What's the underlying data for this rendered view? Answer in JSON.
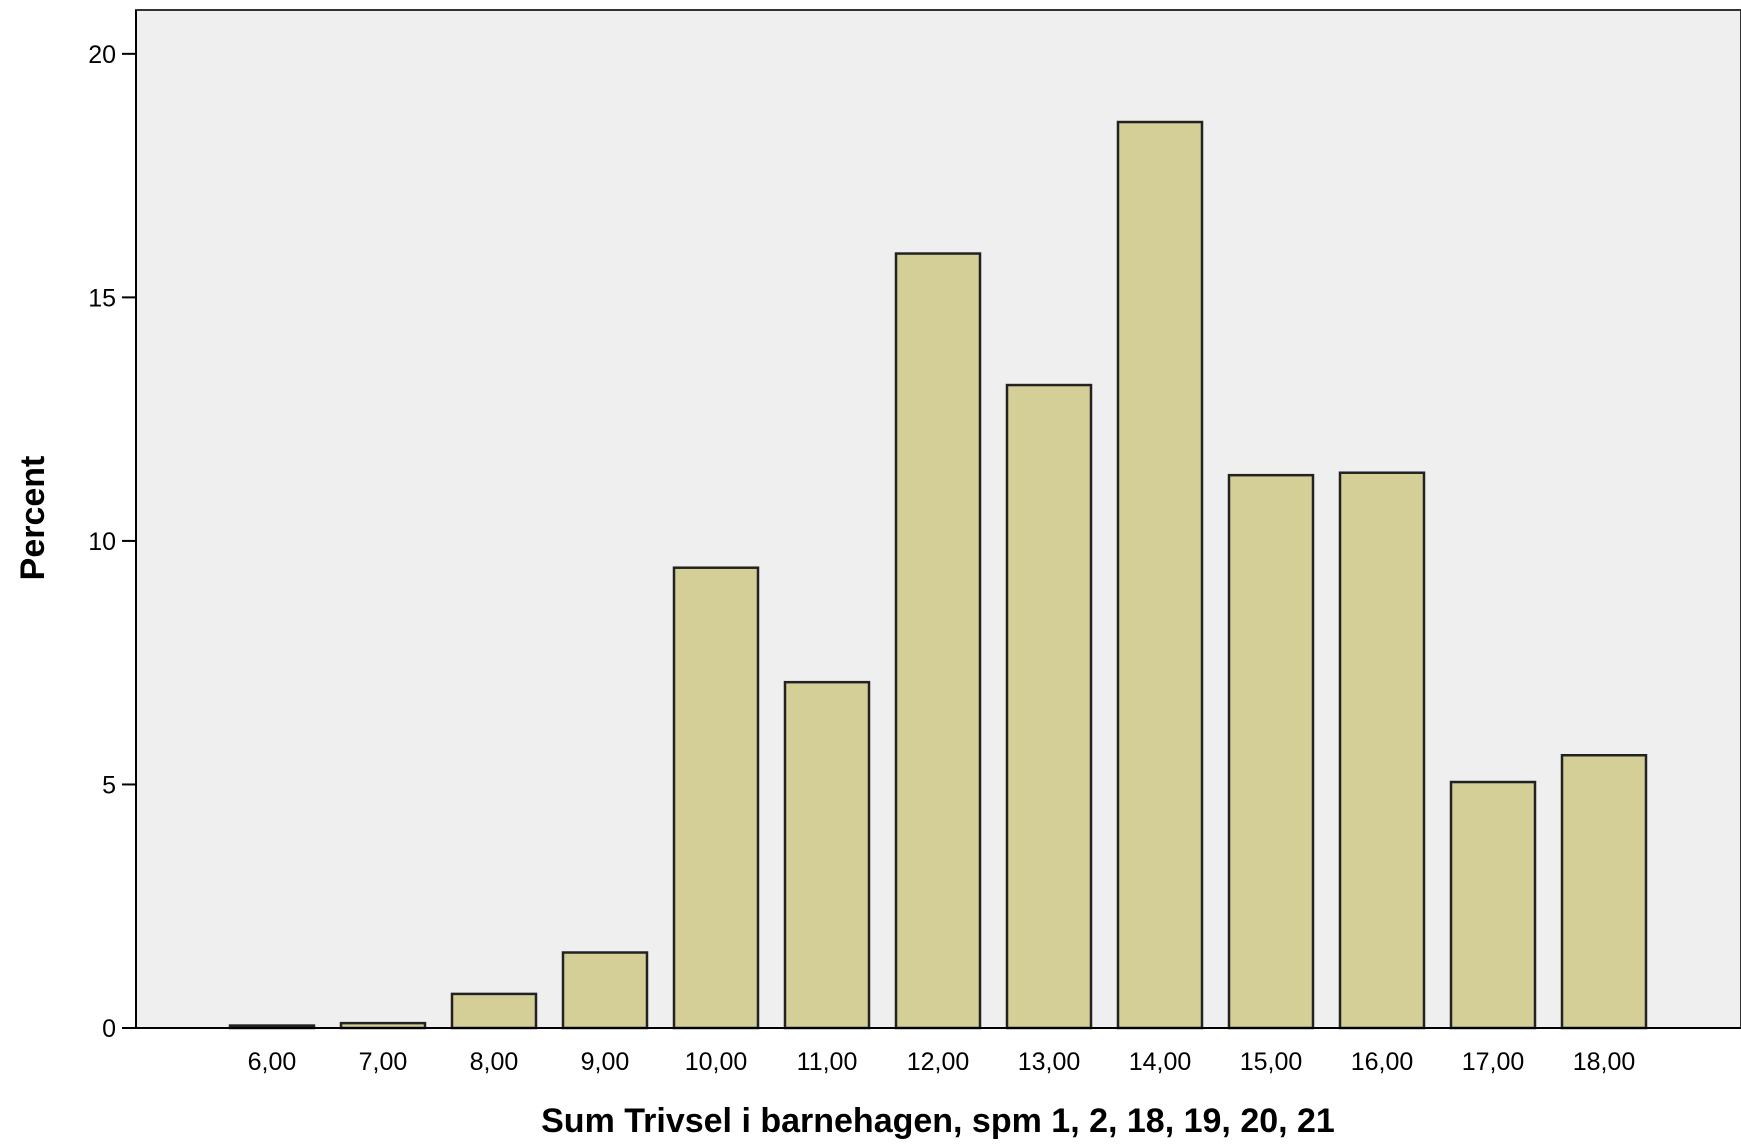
{
  "chart_data": {
    "type": "bar",
    "title": "",
    "xlabel": "Sum Trivsel i barnehagen, spm 1, 2, 18, 19, 20, 21",
    "ylabel": "Percent",
    "categories": [
      "6,00",
      "7,00",
      "8,00",
      "9,00",
      "10,00",
      "11,00",
      "12,00",
      "13,00",
      "14,00",
      "15,00",
      "16,00",
      "17,00",
      "18,00"
    ],
    "values": [
      0.05,
      0.1,
      0.7,
      1.55,
      9.45,
      7.1,
      15.9,
      13.2,
      18.6,
      11.35,
      11.4,
      5.05,
      5.6
    ],
    "ylim": [
      0,
      20.9
    ],
    "yticks": [
      0,
      5,
      10,
      15,
      20
    ],
    "ytick_labels": [
      "0",
      "5",
      "10",
      "15",
      "20"
    ],
    "grid": false,
    "colors": {
      "bar_fill": "#d3cf97",
      "bar_stroke": "#222222",
      "plot_background": "#efefef"
    }
  }
}
